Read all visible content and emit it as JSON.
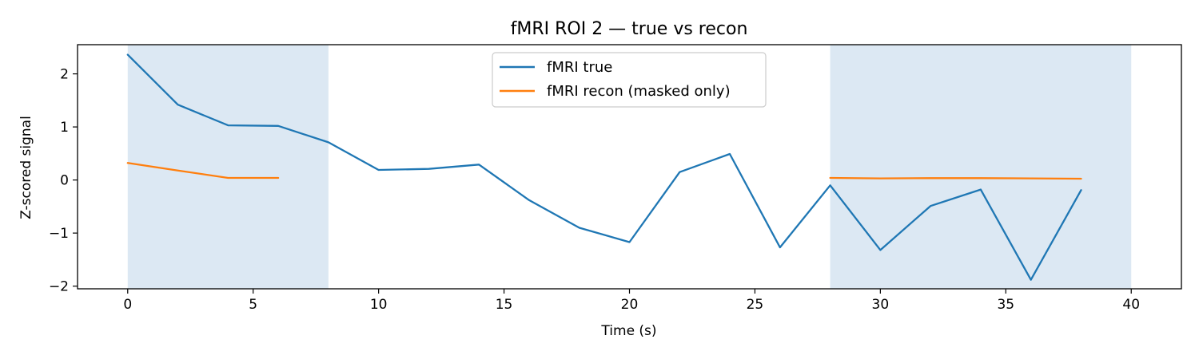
{
  "chart_data": {
    "type": "line",
    "title": "fMRI ROI 2 — true vs recon",
    "xlabel": "Time (s)",
    "ylabel": "Z-scored signal",
    "xlim": [
      -2,
      42
    ],
    "ylim": [
      -2.05,
      2.55
    ],
    "xticks": [
      0,
      5,
      10,
      15,
      20,
      25,
      30,
      35,
      40
    ],
    "yticks": [
      -2,
      -1,
      0,
      1,
      2
    ],
    "xtick_labels": [
      "0",
      "5",
      "10",
      "15",
      "20",
      "25",
      "30",
      "35",
      "40"
    ],
    "ytick_labels": [
      "−2",
      "−1",
      "0",
      "1",
      "2"
    ],
    "grid": false,
    "legend_position": "upper center",
    "shaded_regions": [
      {
        "x0": 0,
        "x1": 8,
        "color": "#dce8f3"
      },
      {
        "x0": 28,
        "x1": 40,
        "color": "#dce8f3"
      }
    ],
    "series": [
      {
        "name": "fMRI true",
        "color": "#1f77b4",
        "x": [
          0,
          2,
          4,
          6,
          8,
          10,
          12,
          14,
          16,
          18,
          20,
          22,
          24,
          26,
          28,
          30,
          32,
          34,
          36,
          38
        ],
        "y": [
          2.36,
          1.42,
          1.03,
          1.02,
          0.71,
          0.19,
          0.21,
          0.29,
          -0.38,
          -0.9,
          -1.17,
          0.15,
          0.49,
          -1.27,
          -0.1,
          -1.32,
          -0.49,
          -0.18,
          -1.88,
          -0.19
        ]
      },
      {
        "name": "fMRI recon (masked only)",
        "color": "#ff7f0e",
        "segments": [
          {
            "x": [
              0,
              2,
              4,
              6
            ],
            "y": [
              0.32,
              0.18,
              0.04,
              0.04
            ]
          },
          {
            "x": [
              28,
              30,
              32,
              34,
              36,
              38
            ],
            "y": [
              0.04,
              0.03,
              0.035,
              0.035,
              0.03,
              0.025
            ]
          }
        ]
      }
    ]
  }
}
